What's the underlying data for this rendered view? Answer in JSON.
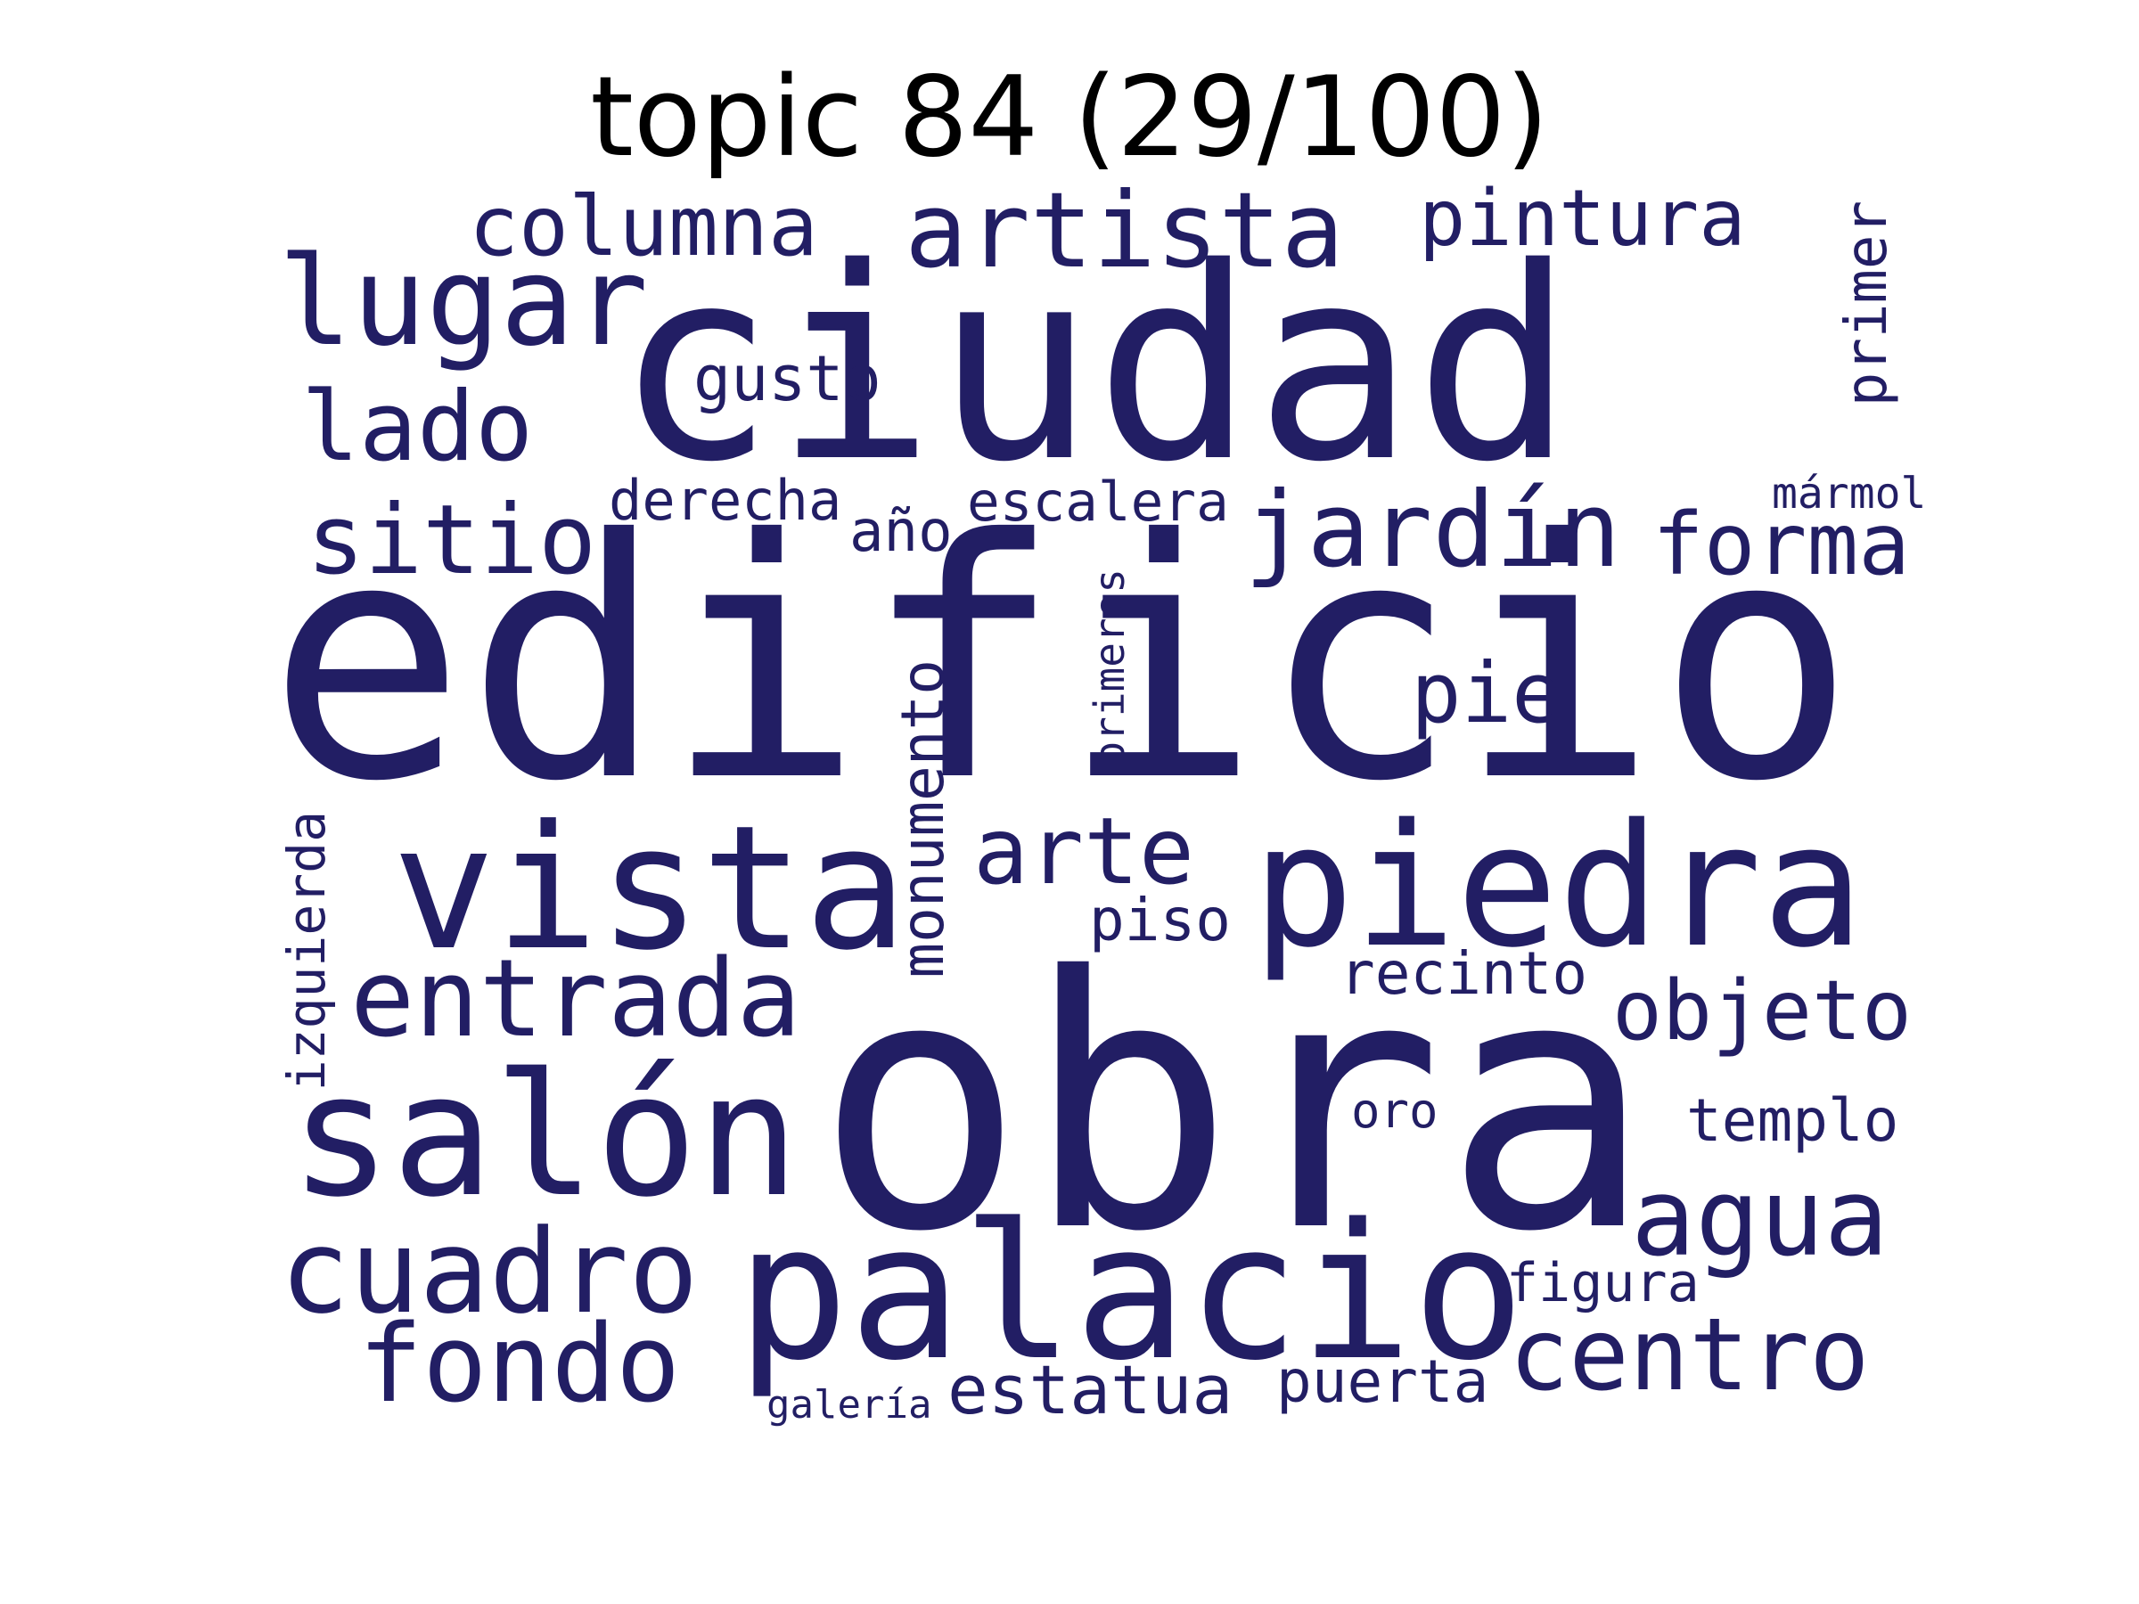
{
  "title": "topic 84 (29/100)",
  "colors": {
    "words": "#221e64",
    "title": "#000000",
    "background": "#ffffff"
  },
  "words": {
    "ciudad": "ciudad",
    "edificio": "edificio",
    "obra": "obra",
    "palacio": "palacio",
    "piedra": "piedra",
    "vista": "vista",
    "salon": "salón",
    "artista": "artista",
    "lugar": "lugar",
    "columna": "columna",
    "pintura": "pintura",
    "lado": "lado",
    "gusto": "gusto",
    "primer": "primer",
    "sitio": "sitio",
    "derecha": "derecha",
    "ano": "año",
    "escalera": "escalera",
    "jardin": "jardín",
    "forma": "forma",
    "marmol": "mármol",
    "pie": "pie",
    "primeros": "primeros",
    "monumento": "monumento",
    "arte": "arte",
    "izquierda": "izquierda",
    "piso": "piso",
    "entrada": "entrada",
    "recinto": "recinto",
    "objeto": "objeto",
    "oro": "oro",
    "templo": "templo",
    "agua": "agua",
    "cuadro": "cuadro",
    "figura": "figura",
    "fondo": "fondo",
    "centro": "centro",
    "estatua": "estatua",
    "puerta": "puerta",
    "galeria": "galería"
  }
}
